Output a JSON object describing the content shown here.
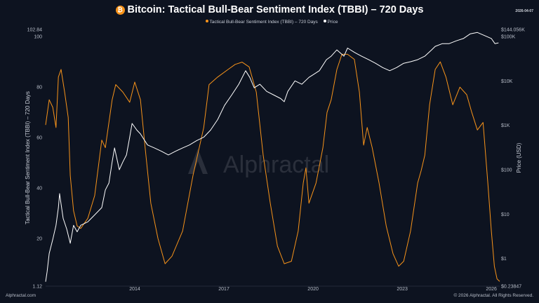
{
  "header": {
    "title": "Bitcoin: Tactical Bull-Bear Sentiment Index (TBBI) – 720 Days",
    "coin_icon": "bitcoin-icon",
    "date": "2026-04-07"
  },
  "footer": {
    "left": "Alphractal.com",
    "right": "© 2026 Alphractal. All Rights Reserved."
  },
  "watermark": "Alphractal",
  "chart_data": {
    "type": "line",
    "title": "Bitcoin: Tactical Bull-Bear Sentiment Index (TBBI) – 720 Days",
    "ylabel": "Tactical Bull-Bear Sentiment Index (TBBI) – 720 Days",
    "y2label": "Price (USD)",
    "xlim": [
      2011.0,
      2026.28
    ],
    "ylim": [
      1.12,
      102.84
    ],
    "y2lim": [
      0.23847,
      144056
    ],
    "y2scale": "log",
    "x_ticks": [
      "2014",
      "2017",
      "2020",
      "2023",
      "2026"
    ],
    "y_ticks": [
      "1.12",
      "20",
      "40",
      "60",
      "80",
      "100",
      "102.84"
    ],
    "y2_ticks": [
      "$0.23847",
      "$1",
      "$10",
      "$100",
      "$1K",
      "$10K",
      "$100K",
      "$144.056K"
    ],
    "legend_position": "top-center",
    "grid": false,
    "series": [
      {
        "name": "Tactical Bull-Bear Sentiment Index (TBBI) – 720 Days",
        "axis": "left",
        "color": "#f7931a",
        "points": [
          [
            2011.0,
            65
          ],
          [
            2011.12,
            75
          ],
          [
            2011.24,
            72
          ],
          [
            2011.35,
            64
          ],
          [
            2011.43,
            84
          ],
          [
            2011.52,
            87
          ],
          [
            2011.64,
            78
          ],
          [
            2011.76,
            68
          ],
          [
            2011.83,
            45
          ],
          [
            2011.94,
            31
          ],
          [
            2012.06,
            25
          ],
          [
            2012.18,
            24
          ],
          [
            2012.42,
            28
          ],
          [
            2012.65,
            37
          ],
          [
            2012.89,
            59
          ],
          [
            2013.01,
            56
          ],
          [
            2013.24,
            75
          ],
          [
            2013.36,
            81
          ],
          [
            2013.6,
            78
          ],
          [
            2013.83,
            74
          ],
          [
            2014.0,
            82
          ],
          [
            2014.19,
            75
          ],
          [
            2014.35,
            56
          ],
          [
            2014.54,
            34
          ],
          [
            2014.78,
            20
          ],
          [
            2015.02,
            10
          ],
          [
            2015.25,
            13
          ],
          [
            2015.61,
            23
          ],
          [
            2015.96,
            45
          ],
          [
            2016.32,
            64
          ],
          [
            2016.5,
            81
          ],
          [
            2016.79,
            84
          ],
          [
            2017.14,
            87
          ],
          [
            2017.38,
            89
          ],
          [
            2017.61,
            89.9
          ],
          [
            2017.85,
            88
          ],
          [
            2018.09,
            78
          ],
          [
            2018.32,
            53
          ],
          [
            2018.56,
            34
          ],
          [
            2018.8,
            17
          ],
          [
            2019.03,
            10
          ],
          [
            2019.27,
            11
          ],
          [
            2019.5,
            23
          ],
          [
            2019.67,
            42
          ],
          [
            2019.76,
            48
          ],
          [
            2019.86,
            34
          ],
          [
            2020.1,
            42
          ],
          [
            2020.33,
            56
          ],
          [
            2020.47,
            70
          ],
          [
            2020.61,
            75
          ],
          [
            2020.8,
            87
          ],
          [
            2020.97,
            93
          ],
          [
            2021.16,
            93
          ],
          [
            2021.39,
            91
          ],
          [
            2021.56,
            78
          ],
          [
            2021.7,
            57
          ],
          [
            2021.82,
            64
          ],
          [
            2021.99,
            56
          ],
          [
            2022.22,
            42
          ],
          [
            2022.46,
            25
          ],
          [
            2022.69,
            14
          ],
          [
            2022.88,
            9
          ],
          [
            2023.05,
            11
          ],
          [
            2023.28,
            23
          ],
          [
            2023.52,
            42
          ],
          [
            2023.64,
            47
          ],
          [
            2023.76,
            53
          ],
          [
            2023.92,
            73
          ],
          [
            2024.11,
            87
          ],
          [
            2024.28,
            90
          ],
          [
            2024.47,
            84
          ],
          [
            2024.7,
            73
          ],
          [
            2024.94,
            80
          ],
          [
            2025.17,
            77
          ],
          [
            2025.34,
            70
          ],
          [
            2025.53,
            63
          ],
          [
            2025.72,
            66
          ],
          [
            2025.88,
            42
          ],
          [
            2026.0,
            23
          ],
          [
            2026.1,
            9
          ],
          [
            2026.19,
            4
          ],
          [
            2026.28,
            3
          ]
        ]
      },
      {
        "name": "Price",
        "axis": "right",
        "color": "#ffffff",
        "points": [
          [
            2011.0,
            0.3
          ],
          [
            2011.05,
            0.5
          ],
          [
            2011.12,
            1.3
          ],
          [
            2011.24,
            2.7
          ],
          [
            2011.35,
            5.6
          ],
          [
            2011.43,
            14
          ],
          [
            2011.47,
            29
          ],
          [
            2011.52,
            17
          ],
          [
            2011.59,
            8
          ],
          [
            2011.71,
            4.6
          ],
          [
            2011.83,
            2.2
          ],
          [
            2011.94,
            5.6
          ],
          [
            2012.06,
            4
          ],
          [
            2012.18,
            5.6
          ],
          [
            2012.42,
            6.7
          ],
          [
            2012.65,
            9.6
          ],
          [
            2012.89,
            14
          ],
          [
            2013.01,
            35
          ],
          [
            2013.13,
            50
          ],
          [
            2013.24,
            150
          ],
          [
            2013.32,
            310
          ],
          [
            2013.48,
            100
          ],
          [
            2013.6,
            150
          ],
          [
            2013.72,
            215
          ],
          [
            2013.83,
            540
          ],
          [
            2013.91,
            1100
          ],
          [
            2014.07,
            780
          ],
          [
            2014.19,
            640
          ],
          [
            2014.43,
            360
          ],
          [
            2014.66,
            310
          ],
          [
            2014.9,
            260
          ],
          [
            2015.13,
            215
          ],
          [
            2015.37,
            260
          ],
          [
            2015.61,
            310
          ],
          [
            2015.84,
            360
          ],
          [
            2016.08,
            450
          ],
          [
            2016.32,
            540
          ],
          [
            2016.55,
            780
          ],
          [
            2016.79,
            1350
          ],
          [
            2017.02,
            2800
          ],
          [
            2017.26,
            4800
          ],
          [
            2017.5,
            8400
          ],
          [
            2017.73,
            17000
          ],
          [
            2017.87,
            12000
          ],
          [
            2018.02,
            7000
          ],
          [
            2018.21,
            8400
          ],
          [
            2018.44,
            5800
          ],
          [
            2018.68,
            4800
          ],
          [
            2018.91,
            4000
          ],
          [
            2019.03,
            3400
          ],
          [
            2019.15,
            5800
          ],
          [
            2019.39,
            10000
          ],
          [
            2019.62,
            8400
          ],
          [
            2019.86,
            12000
          ],
          [
            2020.02,
            14000
          ],
          [
            2020.21,
            17000
          ],
          [
            2020.45,
            30000
          ],
          [
            2020.61,
            36000
          ],
          [
            2020.8,
            50000
          ],
          [
            2021.04,
            36000
          ],
          [
            2021.16,
            55000
          ],
          [
            2021.39,
            44000
          ],
          [
            2021.63,
            36000
          ],
          [
            2021.87,
            30000
          ],
          [
            2022.1,
            25000
          ],
          [
            2022.34,
            20000
          ],
          [
            2022.58,
            17000
          ],
          [
            2022.81,
            20000
          ],
          [
            2023.05,
            25000
          ],
          [
            2023.28,
            27000
          ],
          [
            2023.52,
            30000
          ],
          [
            2023.76,
            36000
          ],
          [
            2023.99,
            50000
          ],
          [
            2024.11,
            60000
          ],
          [
            2024.35,
            69000
          ],
          [
            2024.58,
            69000
          ],
          [
            2024.82,
            80000
          ],
          [
            2025.06,
            90000
          ],
          [
            2025.29,
            115000
          ],
          [
            2025.53,
            123000
          ],
          [
            2025.77,
            105000
          ],
          [
            2026.0,
            90000
          ],
          [
            2026.12,
            69000
          ],
          [
            2026.24,
            72000
          ]
        ]
      }
    ]
  }
}
